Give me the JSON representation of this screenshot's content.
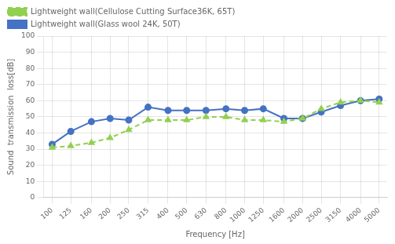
{
  "chart_data": {
    "type": "line",
    "xlabel": "Frequency [Hz]",
    "ylabel": "Sound  transmission  loss[dB]",
    "x": [
      100,
      125,
      160,
      200,
      250,
      315,
      400,
      500,
      630,
      800,
      1000,
      1250,
      1600,
      2000,
      2500,
      3150,
      4000,
      5000
    ],
    "series": [
      {
        "name": "Lightweight wall(Cellulose Cutting Surface36K, 65T)",
        "color": "#92D050",
        "marker": "triangle",
        "line_style": "dashed",
        "values": [
          31,
          32,
          34,
          37,
          42,
          48,
          48,
          48,
          50,
          50,
          48,
          48,
          47,
          49,
          55,
          59,
          60,
          59
        ]
      },
      {
        "name": "Lightweight wall(Glass wool 24K, 50T)",
        "color": "#4472c4",
        "marker": "circle",
        "line_style": "solid",
        "values": [
          33,
          41,
          47,
          49,
          48,
          56,
          54,
          54,
          54,
          55,
          54,
          55,
          49,
          49,
          53,
          57,
          60,
          61
        ]
      }
    ],
    "xlim": [
      90,
      5500
    ],
    "xticks": [
      100,
      125,
      160,
      200,
      250,
      315,
      400,
      500,
      630,
      800,
      1000,
      1250,
      1600,
      2000,
      2500,
      3150,
      4000,
      5000
    ],
    "ylim": [
      0,
      100
    ],
    "yticks": [
      0,
      10,
      20,
      30,
      40,
      50,
      60,
      70,
      80,
      90,
      100
    ],
    "log": "x",
    "grid": true,
    "legend": "upper left"
  }
}
